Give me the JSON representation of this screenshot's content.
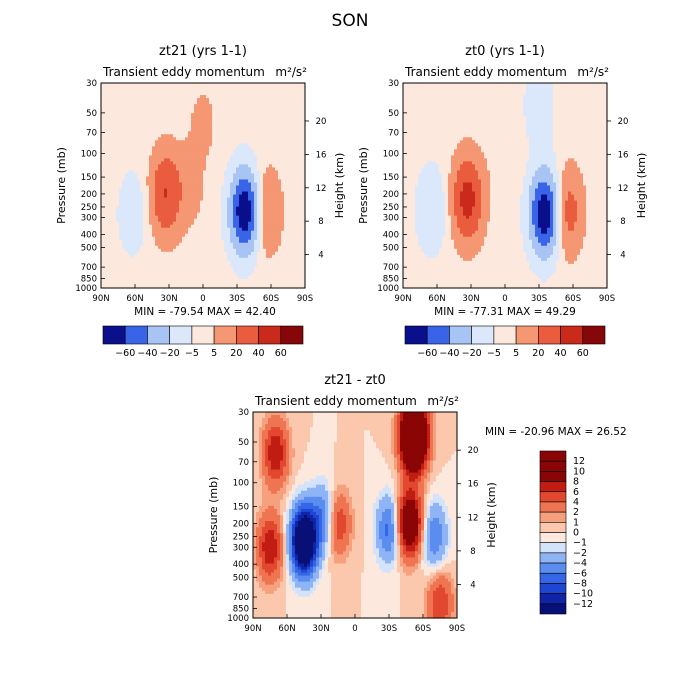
{
  "figure": {
    "season": "SON",
    "min_label": "MIN =",
    "max_label": "MAX ="
  },
  "chart_data": [
    {
      "type": "heatmap",
      "title": "zt21 (yrs 1-1)",
      "subtitle": "Transient eddy momentum",
      "units": "m²/s²",
      "xlabel": "",
      "ylabel": "Pressure (mb)",
      "y2label": "Height (km)",
      "x_ticks": [
        "90N",
        "60N",
        "30N",
        "0",
        "30S",
        "60S",
        "90S"
      ],
      "x_range": [
        90,
        -90
      ],
      "y_ticks": [
        30,
        50,
        70,
        100,
        150,
        200,
        250,
        300,
        400,
        500,
        700,
        850,
        1000
      ],
      "y_range": [
        1000,
        30
      ],
      "y2_ticks": [
        4,
        8,
        12,
        16,
        20
      ],
      "min": -79.54,
      "max": 42.4,
      "min_text": "-79.54",
      "max_text": "42.40",
      "colorbar_levels": [
        -60,
        -40,
        -20,
        -5,
        5,
        20,
        40,
        60
      ],
      "features": [
        {
          "lat": 33,
          "p": 200,
          "value": 40
        },
        {
          "lat": -37,
          "p": 270,
          "value": -79.5
        },
        {
          "lat": -55,
          "p": 270,
          "value": 25
        },
        {
          "lat": 62,
          "p": 280,
          "value": -15
        },
        {
          "lat": 12,
          "p": 180,
          "value": 10
        },
        {
          "lat": 0,
          "p": 60,
          "value": 8
        }
      ]
    },
    {
      "type": "heatmap",
      "title": "zt0 (yrs 1-1)",
      "subtitle": "Transient eddy momentum",
      "units": "m²/s²",
      "xlabel": "",
      "ylabel": "Pressure (mb)",
      "y2label": "Height (km)",
      "x_ticks": [
        "90N",
        "60N",
        "30N",
        "0",
        "30S",
        "60S",
        "90S"
      ],
      "x_range": [
        90,
        -90
      ],
      "y_ticks": [
        30,
        50,
        70,
        100,
        150,
        200,
        250,
        300,
        400,
        500,
        700,
        850,
        1000
      ],
      "y_range": [
        1000,
        30
      ],
      "y2_ticks": [
        4,
        8,
        12,
        16,
        20
      ],
      "min": -77.31,
      "max": 49.29,
      "min_text": "-77.31",
      "max_text": "49.29",
      "colorbar_levels": [
        -60,
        -40,
        -20,
        -5,
        5,
        20,
        40,
        60
      ],
      "features": [
        {
          "lat": 33,
          "p": 220,
          "value": 49
        },
        {
          "lat": -35,
          "p": 280,
          "value": -77.3
        },
        {
          "lat": -55,
          "p": 270,
          "value": 30
        },
        {
          "lat": 65,
          "p": 260,
          "value": -20
        },
        {
          "lat": -30,
          "p": 45,
          "value": -15
        },
        {
          "lat": 0,
          "p": 90,
          "value": 5
        }
      ]
    },
    {
      "type": "heatmap",
      "title": "zt21 - zt0",
      "subtitle": "Transient eddy momentum",
      "units": "m²/s²",
      "xlabel": "",
      "ylabel": "Pressure (mb)",
      "y2label": "Height (km)",
      "x_ticks": [
        "90N",
        "60N",
        "30N",
        "0",
        "30S",
        "60S",
        "90S"
      ],
      "x_range": [
        90,
        -90
      ],
      "y_ticks": [
        30,
        50,
        70,
        100,
        150,
        200,
        250,
        300,
        400,
        500,
        700,
        850,
        1000
      ],
      "y_range": [
        1000,
        30
      ],
      "y2_ticks": [
        4,
        8,
        12,
        16,
        20
      ],
      "min": -20.96,
      "max": 26.52,
      "min_text": "-20.96",
      "max_text": "26.52",
      "colorbar_levels": [
        -12,
        -10,
        -8,
        -6,
        -4,
        -2,
        -1,
        0,
        1,
        2,
        4,
        6,
        8,
        10,
        12
      ],
      "features": [
        {
          "lat": -52,
          "p": 45,
          "value": 26.5
        },
        {
          "lat": -48,
          "p": 200,
          "value": 14
        },
        {
          "lat": 45,
          "p": 270,
          "value": -20.96
        },
        {
          "lat": 70,
          "p": 60,
          "value": 8
        },
        {
          "lat": 75,
          "p": 300,
          "value": 8
        },
        {
          "lat": 15,
          "p": 200,
          "value": 6
        },
        {
          "lat": -30,
          "p": 220,
          "value": -7
        },
        {
          "lat": -70,
          "p": 250,
          "value": -6
        },
        {
          "lat": 28,
          "p": 180,
          "value": -6
        },
        {
          "lat": -75,
          "p": 780,
          "value": 6
        }
      ]
    }
  ]
}
